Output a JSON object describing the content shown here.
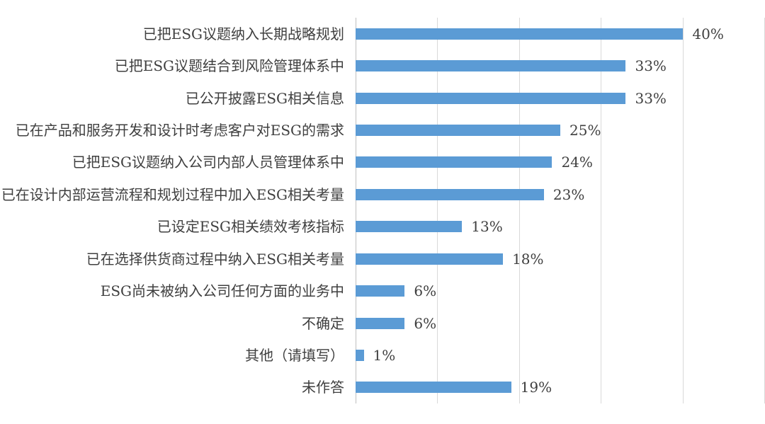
{
  "chart_data": {
    "type": "bar",
    "orientation": "horizontal",
    "title": "",
    "xlabel": "",
    "ylabel": "",
    "legend": "none",
    "grid": "vertical-only",
    "categories": [
      "已把ESG议题纳入长期战略规划",
      "已把ESG议题结合到风险管理体系中",
      "已公开披露ESG相关信息",
      "已在产品和服务开发和设计时考虑客户对ESG的需求",
      "已把ESG议题纳入公司内部人员管理体系中",
      "已在设计内部运营流程和规划过程中加入ESG相关考量",
      "已设定ESG相关绩效考核指标",
      "已在选择供货商过程中纳入ESG相关考量",
      "ESG尚未被纳入公司任何方面的业务中",
      "不确定",
      "其他（请填写）",
      "未作答"
    ],
    "values": [
      40,
      33,
      33,
      25,
      24,
      23,
      13,
      18,
      6,
      6,
      1,
      19
    ],
    "value_labels": [
      "40%",
      "33%",
      "33%",
      "25%",
      "24%",
      "23%",
      "13%",
      "18%",
      "6%",
      "6%",
      "1%",
      "19%"
    ],
    "xlim": [
      0,
      50
    ],
    "gridline_step": 10,
    "bar_color": "#5B9BD5",
    "gridline_color": "#D9D9D9",
    "axis_line_color": "#BFBFBF",
    "label_color": "#3F3F3F",
    "background_color": "#FFFFFF"
  }
}
